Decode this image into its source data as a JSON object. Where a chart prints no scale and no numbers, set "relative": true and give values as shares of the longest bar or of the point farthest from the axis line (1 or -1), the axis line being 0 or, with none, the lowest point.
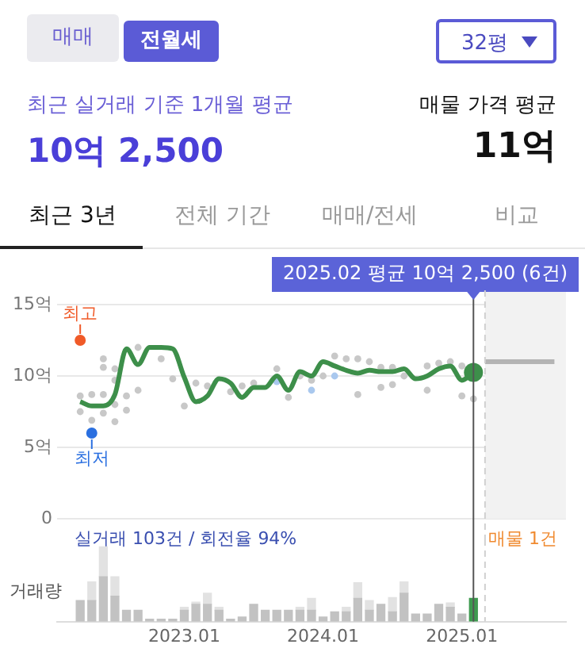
{
  "chart_data": [
    {
      "type": "line",
      "annotations": [
        "매매",
        "전월세",
        "32평",
        "최근 실거래 기준 1개월 평균",
        "10억 2,500",
        "매물 가격 평균",
        "11억",
        "최근 3년",
        "전체 기간",
        "매매/전세",
        "비교",
        "실거래 103건 / 회전율 94%",
        "매물 1건",
        {
          "text": "최고",
          "x": "2022-04",
          "y": 12.5
        },
        {
          "text": "최저",
          "x": "2022-05",
          "y": 6.0
        }
      ],
      "series": [
        {
          "type": "line",
          "color": "#3d8f4a",
          "marker": "none",
          "x": [
            "2022-04",
            "2022-05",
            "2022-06",
            "2022-07",
            "2022-08",
            "2022-09",
            "2022-10",
            "2022-11",
            "2022-12",
            "2023-01",
            "2023-02",
            "2023-03",
            "2023-04",
            "2023-05",
            "2023-06",
            "2023-07",
            "2023-08",
            "2023-09",
            "2023-10",
            "2023-11",
            "2023-12",
            "2024-01",
            "2024-02",
            "2024-03",
            "2024-04",
            "2024-05",
            "2024-06",
            "2024-07",
            "2024-08",
            "2024-09",
            "2024-10",
            "2024-11",
            "2024-12",
            "2025-01",
            "2025-02"
          ],
          "values": [
            8.2,
            7.9,
            7.9,
            8.7,
            11.9,
            10.8,
            12.0,
            12.0,
            11.9,
            9.9,
            8.2,
            8.6,
            9.8,
            9.5,
            8.5,
            9.2,
            9.2,
            10.0,
            9.0,
            10.3,
            10.0,
            11.0,
            10.7,
            10.4,
            10.2,
            10.4,
            10.3,
            10.3,
            10.5,
            9.8,
            10.0,
            10.5,
            10.7,
            9.7,
            10.25
          ]
        },
        {
          "type": "scatter",
          "color": "#c8c8c8",
          "marker": "circle",
          "x": [
            "2022-04",
            "2022-04",
            "2022-05",
            "2022-05",
            "2022-06",
            "2022-06",
            "2022-06",
            "2022-06",
            "2022-07",
            "2022-07",
            "2022-07",
            "2022-07",
            "2022-08",
            "2022-08",
            "2022-09",
            "2022-09",
            "2022-11",
            "2022-12",
            "2023-01",
            "2023-02",
            "2023-03",
            "2023-05",
            "2023-06",
            "2023-07",
            "2023-09",
            "2023-10",
            "2023-11",
            "2023-12",
            "2024-01",
            "2024-02",
            "2024-03",
            "2024-04",
            "2024-04",
            "2024-05",
            "2024-06",
            "2024-06",
            "2024-07",
            "2024-07",
            "2024-08",
            "2024-10",
            "2024-10",
            "2024-11",
            "2024-12",
            "2025-01",
            "2025-01",
            "2025-02"
          ],
          "values": [
            8.6,
            7.5,
            8.7,
            6.9,
            11.2,
            10.6,
            8.7,
            7.4,
            10.5,
            9.7,
            8.0,
            6.8,
            8.6,
            7.6,
            12.0,
            9.0,
            11.2,
            9.8,
            7.9,
            9.5,
            9.3,
            8.9,
            9.3,
            9.5,
            10.5,
            8.5,
            10.0,
            9.7,
            10.0,
            11.4,
            11.2,
            11.2,
            8.7,
            11.0,
            10.6,
            9.2,
            10.6,
            9.4,
            10.0,
            9.0,
            10.7,
            10.9,
            11.0,
            10.7,
            8.6,
            8.4
          ]
        },
        {
          "type": "scatter",
          "color": "#a9c8ee",
          "marker": "circle",
          "x": [
            "2023-09",
            "2023-12",
            "2024-02"
          ],
          "values": [
            9.6,
            9.0,
            10.0
          ]
        },
        {
          "type": "scatter",
          "colors": [
            "#f05a28",
            "#2a6fe0"
          ],
          "marker": "circle",
          "x": [
            "2022-04",
            "2022-05"
          ],
          "values": [
            12.5,
            6.0
          ]
        },
        {
          "type": "line",
          "color": "#b4b4b4",
          "x": [
            "2025-03",
            "2025-09"
          ],
          "values": [
            11,
            11
          ]
        }
      ],
      "xlim": [
        "2022-02",
        "2025-10"
      ],
      "ylim": [
        0,
        16
      ],
      "yticks": [
        0,
        {
          "value": 5,
          "label": "5억"
        },
        {
          "value": 10,
          "label": "10억"
        },
        {
          "value": 15,
          "label": "15억"
        }
      ],
      "tick_labels": "y",
      "grid": "y",
      "legend": false,
      "ref_lines": [
        {
          "axis": "x",
          "value": "2025-02",
          "label": "2025.02 평균 10억 2,500 (6건)",
          "color": "#555555",
          "line_style": "solid"
        },
        {
          "axis": "x",
          "value": "2025-03",
          "label": null,
          "color": "#d0d0d0",
          "line_style": "dashed"
        }
      ],
      "bands": [
        {
          "axis": "x",
          "from": "2025-03",
          "to": "2025-10",
          "label": null,
          "color": "#f2f2f2"
        }
      ]
    },
    {
      "type": "bar",
      "stacked": true,
      "relative": true,
      "ylabel": "거래량",
      "x": [
        "2022-04",
        "2022-05",
        "2022-06",
        "2022-07",
        "2022-08",
        "2022-09",
        "2022-10",
        "2022-11",
        "2022-12",
        "2023-01",
        "2023-02",
        "2023-03",
        "2023-04",
        "2023-05",
        "2023-06",
        "2023-07",
        "2023-08",
        "2023-09",
        "2023-10",
        "2023-11",
        "2023-12",
        "2024-01",
        "2024-02",
        "2024-03",
        "2024-04",
        "2024-05",
        "2024-06",
        "2024-07",
        "2024-08",
        "2024-09",
        "2024-10",
        "2024-11",
        "2024-12",
        "2025-01",
        "2025-02"
      ],
      "series": [
        {
          "values": [
            0.28,
            0.28,
            0.6,
            0.34,
            0.15,
            0.15,
            0.03,
            0.03,
            0.03,
            0.15,
            0.23,
            0.23,
            0.15,
            0.03,
            0.06,
            0.23,
            0.15,
            0.15,
            0.15,
            0.15,
            0.15,
            0.06,
            0.13,
            0.13,
            0.31,
            0.15,
            0.23,
            0.13,
            0.38,
            0.1,
            0.1,
            0.23,
            0.19,
            0.1,
            0.31
          ],
          "colors": [
            "#c2c2c2",
            "#c2c2c2",
            "#c2c2c2",
            "#c2c2c2",
            "#c2c2c2",
            "#c2c2c2",
            "#c2c2c2",
            "#c2c2c2",
            "#c2c2c2",
            "#c2c2c2",
            "#c2c2c2",
            "#c2c2c2",
            "#c2c2c2",
            "#c2c2c2",
            "#c2c2c2",
            "#c2c2c2",
            "#c2c2c2",
            "#c2c2c2",
            "#c2c2c2",
            "#c2c2c2",
            "#c2c2c2",
            "#c2c2c2",
            "#c2c2c2",
            "#c2c2c2",
            "#c2c2c2",
            "#c2c2c2",
            "#c2c2c2",
            "#c2c2c2",
            "#c2c2c2",
            "#c2c2c2",
            "#c2c2c2",
            "#c2c2c2",
            "#c2c2c2",
            "#c2c2c2",
            "#3d9a4e"
          ]
        },
        {
          "color": "#e2e2e2",
          "values": [
            null,
            0.25,
            0.4,
            0.26,
            null,
            null,
            null,
            null,
            null,
            0.04,
            0.03,
            0.15,
            0.04,
            null,
            null,
            null,
            null,
            null,
            null,
            0.04,
            0.16,
            null,
            null,
            0.06,
            0.21,
            0.13,
            null,
            0.19,
            0.15,
            null,
            null,
            null,
            0.06,
            null,
            null
          ]
        }
      ],
      "xlim": [
        "2022-02",
        "2025-10"
      ],
      "xticks": [
        {
          "value": "2023-01",
          "label": "2023.01"
        },
        {
          "value": "2024-01",
          "label": "2024.01"
        },
        {
          "value": "2025-01",
          "label": "2025.01"
        }
      ],
      "tick_labels": "x",
      "grid": false,
      "legend": false,
      "ref_lines": [
        {
          "axis": "x",
          "value": "2025-02",
          "label": null,
          "color": "#555555",
          "line_style": "solid"
        },
        {
          "axis": "x",
          "value": "2025-03",
          "label": null,
          "color": "#d0d0d0",
          "line_style": "dashed"
        }
      ]
    }
  ]
}
